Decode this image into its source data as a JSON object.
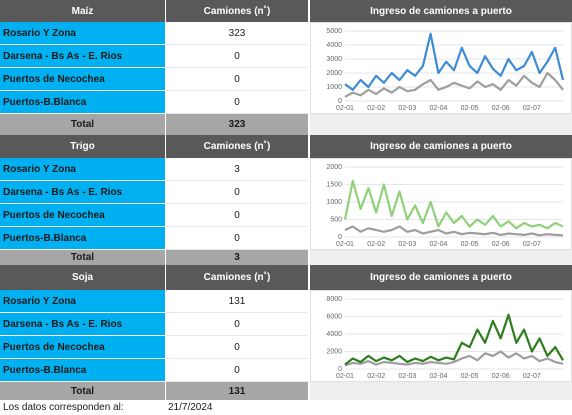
{
  "sections": [
    {
      "product": "Maíz",
      "column_header": "Camiones (n˚)",
      "rows": [
        {
          "name": "Rosario Y Zona",
          "value": 323
        },
        {
          "name": "Darsena - Bs As - E. Rios",
          "value": 0
        },
        {
          "name": "Puertos de Necochea",
          "value": 0
        },
        {
          "name": "Puertos-B.Blanca",
          "value": 0
        }
      ],
      "total_label": "Total",
      "total": 323,
      "chart": {
        "type": "line",
        "title": "Ingreso de camiones a puerto",
        "categories": [
          "02-01",
          null,
          null,
          null,
          "02-02",
          null,
          null,
          null,
          "02-03",
          null,
          null,
          null,
          "02-04",
          null,
          null,
          null,
          "02-05",
          null,
          null,
          null,
          "02-06",
          null,
          null,
          null,
          "02-07",
          null,
          null,
          null,
          null
        ],
        "series": [
          {
            "color": "#3d8bd6",
            "values": [
              1200,
              800,
              1500,
              1000,
              1800,
              1300,
              2000,
              1500,
              2200,
              1800,
              2500,
              4800,
              2000,
              2800,
              2200,
              3800,
              2500,
              2000,
              3200,
              2300,
              1800,
              3000,
              2200,
              2500,
              3500,
              2000,
              2800,
              3800,
              1500
            ]
          },
          {
            "color": "#9e9e9e",
            "values": [
              300,
              600,
              400,
              800,
              500,
              900,
              600,
              1000,
              700,
              800,
              1200,
              1500,
              800,
              1000,
              1300,
              1100,
              900,
              1400,
              1000,
              1200,
              800,
              1500,
              1100,
              1800,
              1300,
              1000,
              2000,
              1500,
              800
            ]
          }
        ],
        "ylim": [
          0,
          5000
        ],
        "yticks": [
          0,
          1000,
          2000,
          3000,
          4000,
          5000
        ]
      }
    },
    {
      "product": "Trigo",
      "column_header": "Camiones (n˚)",
      "rows": [
        {
          "name": "Rosario Y Zona",
          "value": 3
        },
        {
          "name": "Darsena - Bs As - E. Rios",
          "value": 0
        },
        {
          "name": "Puertos de Necochea",
          "value": 0
        },
        {
          "name": "Puertos-B.Blanca",
          "value": 0
        }
      ],
      "total_label": "Total",
      "total": 3,
      "chart": {
        "type": "line",
        "title": "Ingreso de camiones a puerto",
        "categories": [
          "02-01",
          null,
          null,
          null,
          "02-02",
          null,
          null,
          null,
          "02-03",
          null,
          null,
          null,
          "02-04",
          null,
          null,
          null,
          "02-05",
          null,
          null,
          null,
          "02-06",
          null,
          null,
          null,
          "02-07",
          null,
          null,
          null,
          null
        ],
        "series": [
          {
            "color": "#8fd17a",
            "values": [
              500,
              1600,
              800,
              1400,
              700,
              1500,
              600,
              1300,
              500,
              900,
              400,
              1000,
              300,
              700,
              400,
              600,
              300,
              500,
              350,
              600,
              300,
              450,
              250,
              400,
              300,
              350,
              250,
              400,
              300
            ]
          },
          {
            "color": "#9e9e9e",
            "values": [
              200,
              300,
              150,
              250,
              200,
              150,
              200,
              300,
              150,
              200,
              100,
              150,
              200,
              100,
              150,
              80,
              120,
              100,
              80,
              120,
              60,
              100,
              80,
              60,
              100,
              50,
              80,
              60,
              50
            ]
          }
        ],
        "ylim": [
          0,
          2000
        ],
        "yticks": [
          0,
          500,
          1000,
          1500,
          2000
        ]
      }
    },
    {
      "product": "Soja",
      "column_header": "Camiones (n˚)",
      "rows": [
        {
          "name": "Rosario Y Zona",
          "value": 131
        },
        {
          "name": "Darsena - Bs As - E. Rios",
          "value": 0
        },
        {
          "name": "Puertos de Necochea",
          "value": 0
        },
        {
          "name": "Puertos-B.Blanca",
          "value": 0
        }
      ],
      "total_label": "Total",
      "total": 131,
      "chart": {
        "type": "line",
        "title": "Ingreso de camiones a puerto",
        "categories": [
          "02-01",
          null,
          null,
          null,
          "02-02",
          null,
          null,
          null,
          "02-03",
          null,
          null,
          null,
          "02-04",
          null,
          null,
          null,
          "02-05",
          null,
          null,
          null,
          "02-06",
          null,
          null,
          null,
          "02-07",
          null,
          null,
          null,
          null
        ],
        "series": [
          {
            "color": "#2e7d1e",
            "values": [
              500,
              1200,
              800,
              1500,
              900,
              1300,
              1000,
              1500,
              800,
              1200,
              900,
              1400,
              1000,
              1300,
              1100,
              3000,
              2500,
              4500,
              3000,
              5500,
              3500,
              6200,
              3000,
              4500,
              2000,
              3500,
              1500,
              2500,
              1000
            ]
          },
          {
            "color": "#9e9e9e",
            "values": [
              400,
              700,
              600,
              900,
              500,
              800,
              700,
              600,
              500,
              700,
              600,
              800,
              700,
              600,
              800,
              1200,
              1500,
              1000,
              1800,
              1500,
              2000,
              1300,
              1800,
              1200,
              1500,
              900,
              1200,
              800,
              600
            ]
          }
        ],
        "ylim": [
          0,
          8000
        ],
        "yticks": [
          0,
          2000,
          4000,
          6000,
          8000
        ]
      }
    }
  ],
  "footer": {
    "label": "Los datos corresponden al:",
    "date": "21/7/2024"
  }
}
